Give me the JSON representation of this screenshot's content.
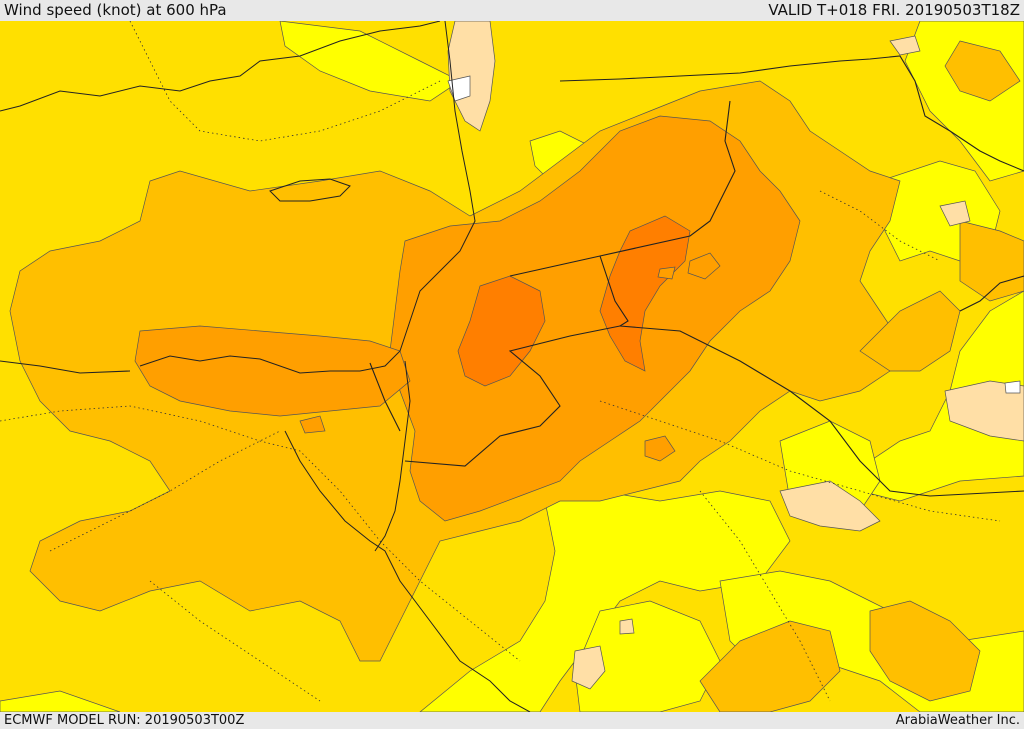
{
  "header": {
    "title": "Wind speed (knot) at 600 hPa",
    "valid": "VALID T+018 FRI. 20190503T18Z"
  },
  "footer": {
    "model_run": "ECMWF MODEL RUN: 20190503T00Z",
    "brand": "ArabiaWeather Inc."
  },
  "colors": {
    "level_low": "#ffff00",
    "level_1": "#ffe000",
    "level_2": "#ffbf00",
    "level_3": "#ff9f00",
    "level_4": "#ff7f00",
    "calm": "#ffdfa6",
    "white": "#ffffff"
  }
}
